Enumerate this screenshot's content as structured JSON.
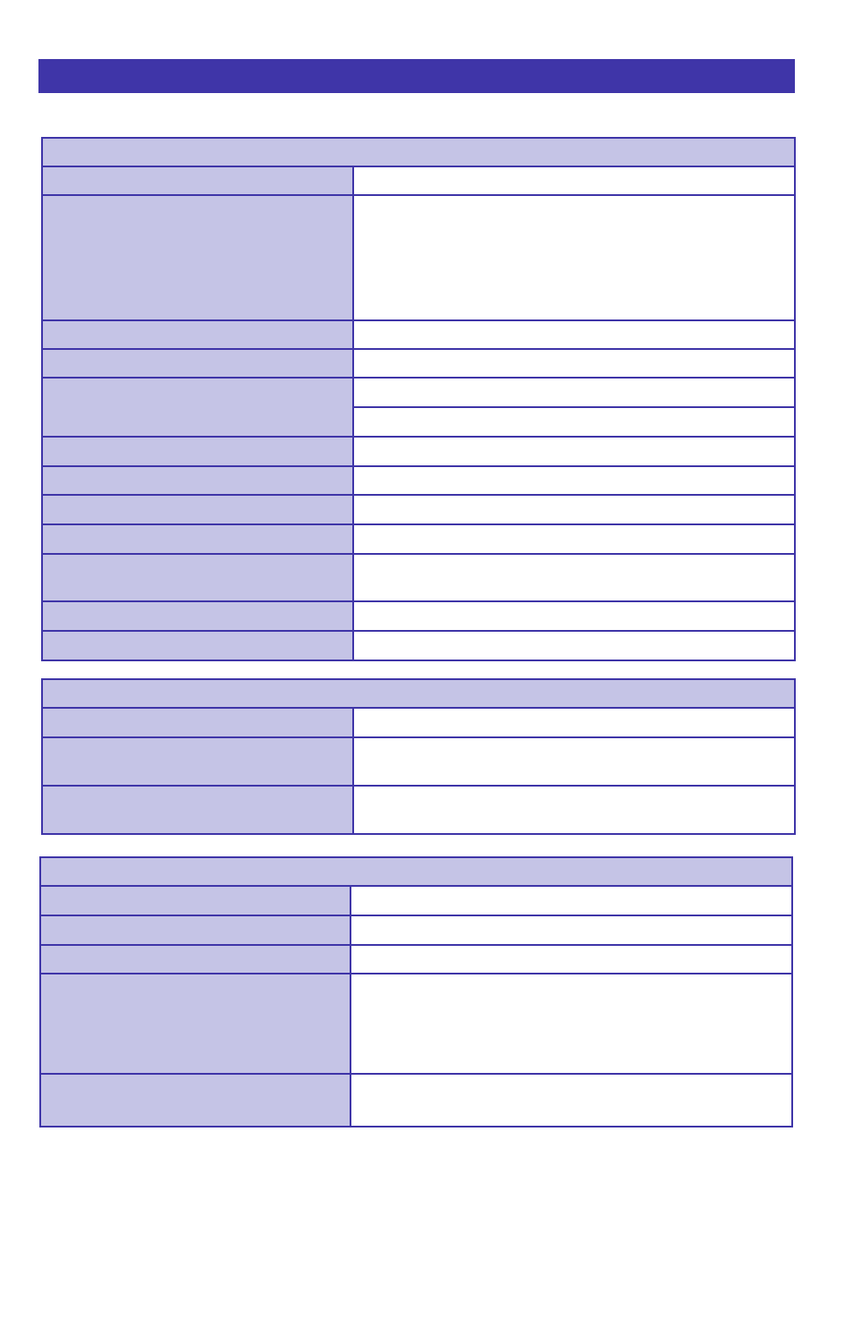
{
  "colors": {
    "accent": "#3f35a8",
    "label_fill": "#c5c4e6",
    "value_fill": "#ffffff"
  },
  "tables": [
    {
      "header": "",
      "rows": [
        {
          "label": "",
          "value": ""
        },
        {
          "label": "",
          "value": ""
        },
        {
          "label": "",
          "value": ""
        },
        {
          "label": "",
          "value": ""
        },
        {
          "label": "",
          "values": [
            "",
            ""
          ]
        },
        {
          "label": "",
          "value": ""
        },
        {
          "label": "",
          "value": ""
        },
        {
          "label": "",
          "value": ""
        },
        {
          "label": "",
          "value": ""
        },
        {
          "label": "",
          "value": ""
        },
        {
          "label": "",
          "value": ""
        },
        {
          "label": "",
          "value": ""
        }
      ]
    },
    {
      "header": "",
      "rows": [
        {
          "label": "",
          "value": ""
        },
        {
          "label": "",
          "value": ""
        },
        {
          "label": "",
          "value": ""
        }
      ]
    },
    {
      "header": "",
      "rows": [
        {
          "label": "",
          "value": ""
        },
        {
          "label": "",
          "value": ""
        },
        {
          "label": "",
          "value": ""
        },
        {
          "label": "",
          "value": ""
        },
        {
          "label": "",
          "value": ""
        }
      ]
    }
  ]
}
